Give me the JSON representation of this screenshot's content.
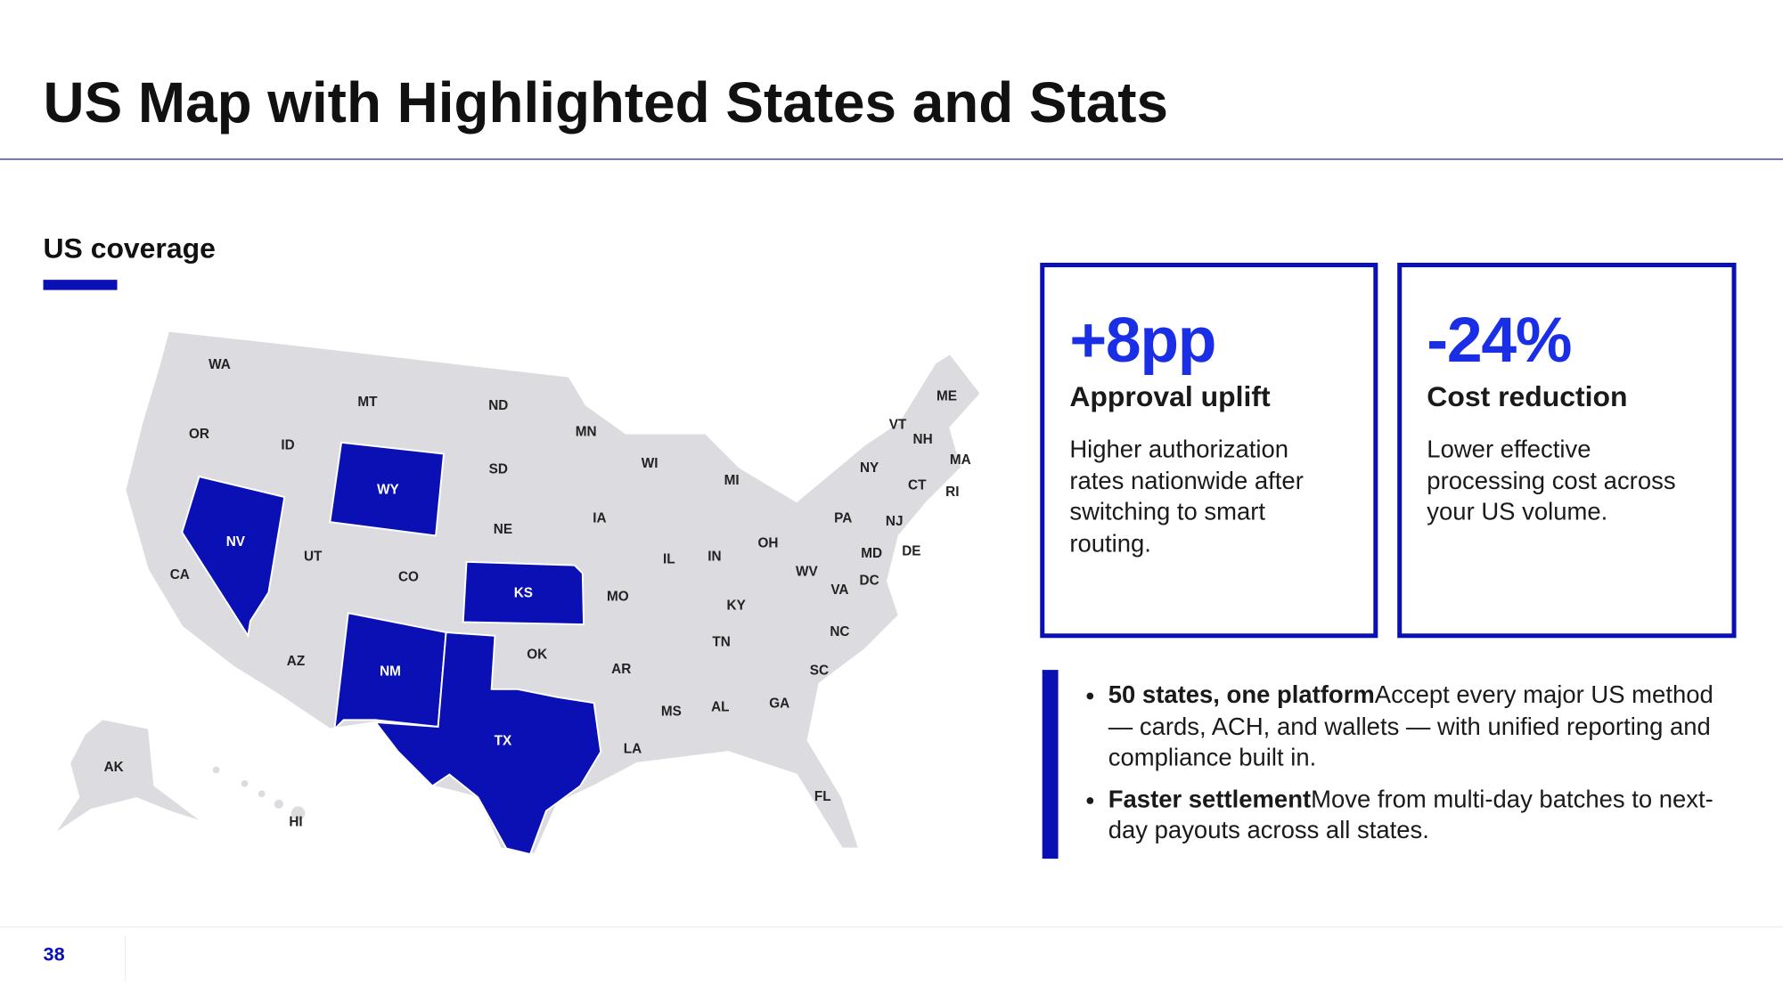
{
  "header": {
    "title": "US Map with Highlighted States and Stats"
  },
  "map": {
    "title": "US coverage",
    "highlight_color": "#0a10b4",
    "base_color": "#dcdbdf",
    "states": [
      {
        "label": "WA",
        "highlighted": false
      },
      {
        "label": "OR",
        "highlighted": false
      },
      {
        "label": "CA",
        "highlighted": false
      },
      {
        "label": "NV",
        "highlighted": true
      },
      {
        "label": "ID",
        "highlighted": false
      },
      {
        "label": "MT",
        "highlighted": false
      },
      {
        "label": "WY",
        "highlighted": true
      },
      {
        "label": "UT",
        "highlighted": false
      },
      {
        "label": "CO",
        "highlighted": false
      },
      {
        "label": "AZ",
        "highlighted": false
      },
      {
        "label": "NM",
        "highlighted": true
      },
      {
        "label": "ND",
        "highlighted": false
      },
      {
        "label": "SD",
        "highlighted": false
      },
      {
        "label": "NE",
        "highlighted": false
      },
      {
        "label": "KS",
        "highlighted": true
      },
      {
        "label": "OK",
        "highlighted": false
      },
      {
        "label": "TX",
        "highlighted": true
      },
      {
        "label": "MN",
        "highlighted": false
      },
      {
        "label": "IA",
        "highlighted": false
      },
      {
        "label": "MO",
        "highlighted": false
      },
      {
        "label": "AR",
        "highlighted": false
      },
      {
        "label": "LA",
        "highlighted": false
      },
      {
        "label": "WI",
        "highlighted": false
      },
      {
        "label": "IL",
        "highlighted": false
      },
      {
        "label": "MS",
        "highlighted": false
      },
      {
        "label": "MI",
        "highlighted": false
      },
      {
        "label": "IN",
        "highlighted": false
      },
      {
        "label": "KY",
        "highlighted": false
      },
      {
        "label": "TN",
        "highlighted": false
      },
      {
        "label": "AL",
        "highlighted": false
      },
      {
        "label": "OH",
        "highlighted": false
      },
      {
        "label": "GA",
        "highlighted": false
      },
      {
        "label": "FL",
        "highlighted": false
      },
      {
        "label": "SC",
        "highlighted": false
      },
      {
        "label": "NC",
        "highlighted": false
      },
      {
        "label": "VA",
        "highlighted": false
      },
      {
        "label": "WV",
        "highlighted": false
      },
      {
        "label": "PA",
        "highlighted": false
      },
      {
        "label": "NY",
        "highlighted": false
      },
      {
        "label": "VT",
        "highlighted": false
      },
      {
        "label": "NH",
        "highlighted": false
      },
      {
        "label": "ME",
        "highlighted": false
      },
      {
        "label": "MA",
        "highlighted": false
      },
      {
        "label": "CT",
        "highlighted": false
      },
      {
        "label": "RI",
        "highlighted": false
      },
      {
        "label": "NJ",
        "highlighted": false
      },
      {
        "label": "DE",
        "highlighted": false
      },
      {
        "label": "MD",
        "highlighted": false
      },
      {
        "label": "DC",
        "highlighted": false
      },
      {
        "label": "AK",
        "highlighted": false
      },
      {
        "label": "HI",
        "highlighted": false
      }
    ]
  },
  "stats": [
    {
      "value": "+8pp",
      "label": "Approval uplift",
      "description": "Higher authorization rates nationwide after switching to smart routing."
    },
    {
      "value": "-24%",
      "label": "Cost reduction",
      "description": "Lower effective processing cost across your US volume."
    }
  ],
  "highlights": [
    {
      "title": "50 states, one platform",
      "text": "Accept every major US method — cards, ACH, and wallets — with unified reporting and compliance built in."
    },
    {
      "title": "Faster settlement",
      "text": "Move from multi-day batches to next-day payouts across all states."
    }
  ],
  "footer": {
    "page": "38"
  }
}
